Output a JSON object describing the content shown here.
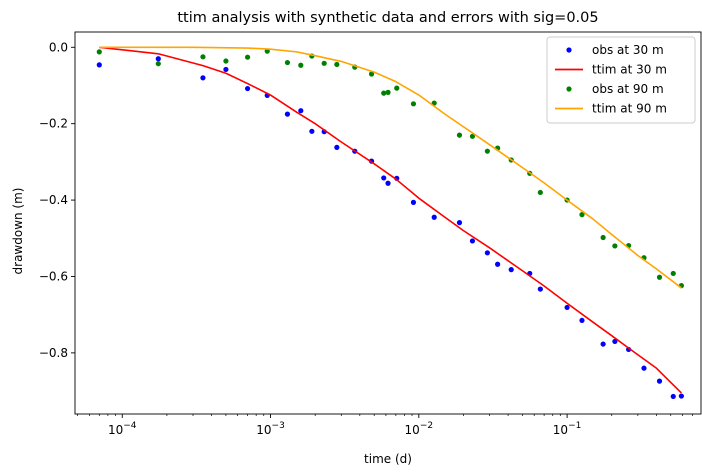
{
  "chart_data": {
    "type": "line",
    "title": "ttim analysis with synthetic data and errors with sig=0.05",
    "xlabel": "time (d)",
    "ylabel": "drawdown (m)",
    "xscale": "log",
    "xlim": [
      4.8e-05,
      0.8
    ],
    "ylim": [
      -0.96,
      0.04
    ],
    "x_ticks": [
      {
        "value": 0.0001,
        "base": "10",
        "exp": "−4"
      },
      {
        "value": 0.001,
        "base": "10",
        "exp": "−3"
      },
      {
        "value": 0.01,
        "base": "10",
        "exp": "−2"
      },
      {
        "value": 0.1,
        "base": "10",
        "exp": "−1"
      }
    ],
    "y_ticks": [
      {
        "value": 0.0,
        "label": "0.0"
      },
      {
        "value": -0.2,
        "label": "−0.2"
      },
      {
        "value": -0.4,
        "label": "−0.4"
      },
      {
        "value": -0.6,
        "label": "−0.6"
      },
      {
        "value": -0.8,
        "label": "−0.8"
      }
    ],
    "grid": false,
    "legend_position": "top-right",
    "series": [
      {
        "name": "obs at 30 m",
        "kind": "scatter",
        "color": "#0000ff",
        "points": [
          [
            7e-05,
            -0.046
          ],
          [
            0.000175,
            -0.03
          ],
          [
            0.00035,
            -0.08
          ],
          [
            0.0005,
            -0.058
          ],
          [
            0.0007,
            -0.108
          ],
          [
            0.00095,
            -0.126
          ],
          [
            0.0013,
            -0.175
          ],
          [
            0.0016,
            -0.166
          ],
          [
            0.0019,
            -0.22
          ],
          [
            0.0023,
            -0.221
          ],
          [
            0.0028,
            -0.262
          ],
          [
            0.0037,
            -0.272
          ],
          [
            0.0048,
            -0.298
          ],
          [
            0.0058,
            -0.342
          ],
          [
            0.0062,
            -0.356
          ],
          [
            0.0071,
            -0.343
          ],
          [
            0.0092,
            -0.406
          ],
          [
            0.0127,
            -0.445
          ],
          [
            0.0188,
            -0.459
          ],
          [
            0.023,
            -0.507
          ],
          [
            0.029,
            -0.538
          ],
          [
            0.034,
            -0.568
          ],
          [
            0.042,
            -0.582
          ],
          [
            0.056,
            -0.592
          ],
          [
            0.066,
            -0.633
          ],
          [
            0.1,
            -0.681
          ],
          [
            0.126,
            -0.715
          ],
          [
            0.175,
            -0.777
          ],
          [
            0.21,
            -0.77
          ],
          [
            0.26,
            -0.791
          ],
          [
            0.33,
            -0.84
          ],
          [
            0.42,
            -0.874
          ],
          [
            0.52,
            -0.914
          ],
          [
            0.59,
            -0.913
          ]
        ]
      },
      {
        "name": "ttim at 30 m",
        "kind": "line",
        "color": "#ff0000",
        "points": [
          [
            7e-05,
            0.0
          ],
          [
            0.000175,
            -0.017
          ],
          [
            0.00035,
            -0.048
          ],
          [
            0.0005,
            -0.068
          ],
          [
            0.0007,
            -0.095
          ],
          [
            0.001,
            -0.125
          ],
          [
            0.0015,
            -0.17
          ],
          [
            0.002,
            -0.2
          ],
          [
            0.003,
            -0.248
          ],
          [
            0.005,
            -0.305
          ],
          [
            0.007,
            -0.345
          ],
          [
            0.01,
            -0.395
          ],
          [
            0.015,
            -0.445
          ],
          [
            0.02,
            -0.48
          ],
          [
            0.03,
            -0.525
          ],
          [
            0.05,
            -0.585
          ],
          [
            0.07,
            -0.625
          ],
          [
            0.1,
            -0.67
          ],
          [
            0.15,
            -0.72
          ],
          [
            0.2,
            -0.755
          ],
          [
            0.3,
            -0.805
          ],
          [
            0.4,
            -0.84
          ],
          [
            0.59,
            -0.905
          ]
        ]
      },
      {
        "name": "obs at 90 m",
        "kind": "scatter",
        "color": "#008000",
        "points": [
          [
            7e-05,
            -0.012
          ],
          [
            0.000175,
            -0.043
          ],
          [
            0.00035,
            -0.025
          ],
          [
            0.0005,
            -0.036
          ],
          [
            0.0007,
            -0.026
          ],
          [
            0.00095,
            -0.01
          ],
          [
            0.0013,
            -0.04
          ],
          [
            0.0016,
            -0.047
          ],
          [
            0.0019,
            -0.023
          ],
          [
            0.0023,
            -0.042
          ],
          [
            0.0028,
            -0.045
          ],
          [
            0.0037,
            -0.052
          ],
          [
            0.0048,
            -0.07
          ],
          [
            0.0058,
            -0.12
          ],
          [
            0.0062,
            -0.118
          ],
          [
            0.0071,
            -0.107
          ],
          [
            0.0092,
            -0.148
          ],
          [
            0.0127,
            -0.146
          ],
          [
            0.0188,
            -0.23
          ],
          [
            0.023,
            -0.233
          ],
          [
            0.029,
            -0.272
          ],
          [
            0.034,
            -0.264
          ],
          [
            0.042,
            -0.295
          ],
          [
            0.056,
            -0.33
          ],
          [
            0.066,
            -0.38
          ],
          [
            0.1,
            -0.4
          ],
          [
            0.126,
            -0.438
          ],
          [
            0.175,
            -0.498
          ],
          [
            0.21,
            -0.52
          ],
          [
            0.26,
            -0.519
          ],
          [
            0.33,
            -0.551
          ],
          [
            0.42,
            -0.602
          ],
          [
            0.52,
            -0.592
          ],
          [
            0.59,
            -0.624
          ]
        ]
      },
      {
        "name": "ttim at 90 m",
        "kind": "line",
        "color": "#ffa500",
        "points": [
          [
            7e-05,
            0.0
          ],
          [
            0.0003,
            0.0
          ],
          [
            0.0007,
            -0.002
          ],
          [
            0.001,
            -0.005
          ],
          [
            0.0015,
            -0.012
          ],
          [
            0.002,
            -0.022
          ],
          [
            0.003,
            -0.037
          ],
          [
            0.005,
            -0.065
          ],
          [
            0.007,
            -0.09
          ],
          [
            0.01,
            -0.125
          ],
          [
            0.015,
            -0.175
          ],
          [
            0.02,
            -0.208
          ],
          [
            0.03,
            -0.255
          ],
          [
            0.05,
            -0.315
          ],
          [
            0.07,
            -0.355
          ],
          [
            0.1,
            -0.4
          ],
          [
            0.15,
            -0.45
          ],
          [
            0.2,
            -0.49
          ],
          [
            0.3,
            -0.545
          ],
          [
            0.4,
            -0.58
          ],
          [
            0.59,
            -0.63
          ]
        ]
      }
    ]
  }
}
